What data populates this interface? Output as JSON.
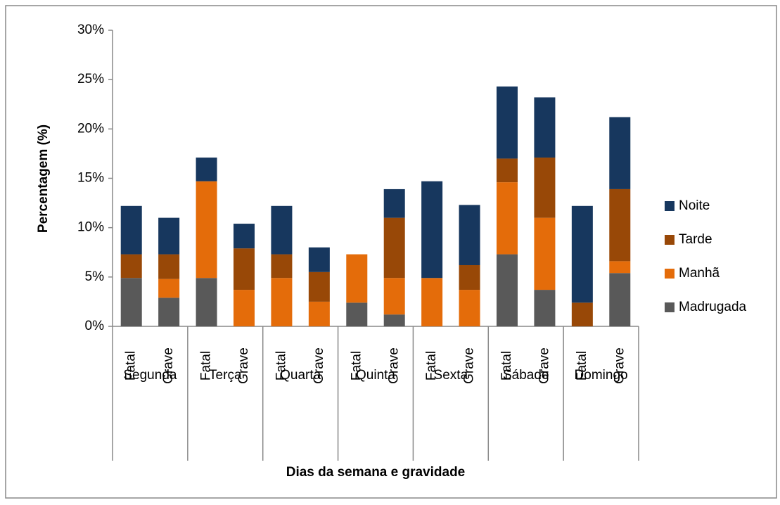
{
  "chart_data": {
    "type": "stacked-bar",
    "y_label": "Percentagem (%)",
    "x_label": "Dias da semana e gravidade",
    "groups": [
      "Segunda",
      "Terça",
      "Quarta",
      "Quinta",
      "Sexta",
      "Sábado",
      "Domingo"
    ],
    "categories": [
      "Fatal",
      "Grave",
      "Fatal",
      "Grave",
      "Fatal",
      "Grave",
      "Fatal",
      "Grave",
      "Fatal",
      "Grave",
      "Fatal",
      "Grave",
      "Fatal",
      "Grave"
    ],
    "series": [
      {
        "name": "Madrugada",
        "color": "#595959",
        "values": [
          4.9,
          2.9,
          4.9,
          0,
          0,
          0,
          2.4,
          1.2,
          0,
          0,
          7.3,
          3.7,
          0,
          5.4
        ]
      },
      {
        "name": "Manhã",
        "color": "#e46c0a",
        "values": [
          0,
          1.9,
          9.8,
          3.7,
          4.9,
          2.5,
          4.9,
          3.7,
          4.9,
          3.7,
          7.3,
          7.3,
          0,
          1.2
        ]
      },
      {
        "name": "Tarde",
        "color": "#984807",
        "values": [
          2.4,
          2.5,
          0,
          4.2,
          2.4,
          3.0,
          0,
          6.1,
          0,
          2.5,
          2.4,
          6.1,
          2.4,
          7.3
        ]
      },
      {
        "name": "Noite",
        "color": "#17375e",
        "values": [
          4.9,
          3.7,
          2.4,
          2.5,
          4.9,
          2.5,
          0,
          2.9,
          9.8,
          6.1,
          7.3,
          6.1,
          9.8,
          7.3
        ]
      }
    ],
    "ylim": [
      0,
      30
    ],
    "yticks": [
      {
        "value": 0,
        "label": "0%"
      },
      {
        "value": 5,
        "label": "5%"
      },
      {
        "value": 10,
        "label": "10%"
      },
      {
        "value": 15,
        "label": "15%"
      },
      {
        "value": 20,
        "label": "20%"
      },
      {
        "value": 25,
        "label": "25%"
      },
      {
        "value": 30,
        "label": "30%"
      }
    ],
    "legend": "right"
  }
}
